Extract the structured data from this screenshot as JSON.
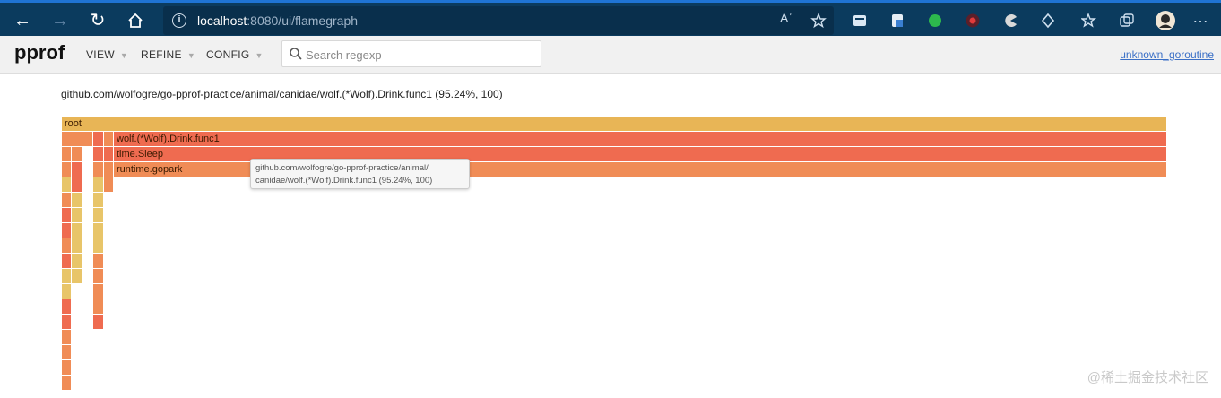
{
  "browser": {
    "url_host": "localhost",
    "url_path": ":8080/ui/flamegraph",
    "read_aloud_label": "Aʾ"
  },
  "header": {
    "logo": "pprof",
    "menus": [
      "VIEW",
      "REFINE",
      "CONFIG"
    ],
    "search_placeholder": "Search regexp",
    "profile_link": "unknown_goroutine"
  },
  "flamegraph": {
    "title": "github.com/wolfogre/go-pprof-practice/animal/canidae/wolf.(*Wolf).Drink.func1 (95.24%, 100)",
    "frames": {
      "root": "root",
      "drink": "wolf.(*Wolf).Drink.func1",
      "sleep": "time.Sleep",
      "gopark": "runtime.gopark"
    },
    "tooltip_line1": "github.com/wolfogre/go-pprof-practice/animal/",
    "tooltip_line2": "canidae/wolf.(*Wolf).Drink.func1 (95.24%, 100)",
    "colors": {
      "root": "#e8b556",
      "hot": "#ef6b50",
      "warm": "#f08c56",
      "yellow": "#e8c569"
    }
  },
  "watermark": "@稀土掘金技术社区"
}
